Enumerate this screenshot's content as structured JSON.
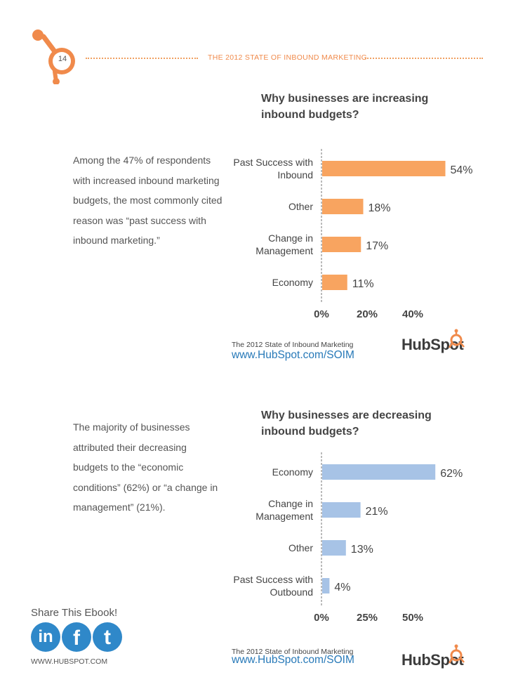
{
  "header": {
    "page_number": "14",
    "title": "THE 2012 STATE OF INBOUND MARKETING"
  },
  "section1": {
    "text": "Among the 47% of respondents with increased inbound marketing budgets, the most commonly cited reason was “past success with inbound marketing.”",
    "chart_title": "Why businesses are increasing inbound budgets?",
    "source_label": "The 2012 State of Inbound Marketing",
    "source_url": "www.HubSpot.com/SOIM",
    "brand": "HubSpot"
  },
  "section2": {
    "text": "The majority of businesses attributed their decreasing budgets to the “economic conditions” (62%) or “a change in management” (21%).",
    "chart_title": "Why businesses are decreasing inbound budgets?",
    "source_label": "The 2012 State of Inbound Marketing",
    "source_url": "www.HubSpot.com/SOIM",
    "brand": "HubSpot"
  },
  "footer": {
    "share_label": "Share This Ebook!",
    "linkedin_label": "in",
    "facebook_label": "f",
    "twitter_label": "t",
    "website": "WWW.HUBSPOT.COM"
  },
  "colors": {
    "accent": "#f08a4b",
    "bar_increase": "#f8a460",
    "bar_decrease": "#a7c3e6",
    "link": "#2779b8",
    "social": "#2f88c9"
  },
  "chart_data": [
    {
      "type": "bar",
      "orientation": "horizontal",
      "title": "Why businesses are increasing inbound budgets?",
      "categories": [
        [
          "Past Success with",
          "Inbound"
        ],
        [
          "Other"
        ],
        [
          "Change in",
          "Management"
        ],
        [
          "Economy"
        ]
      ],
      "values": [
        54,
        18,
        17,
        11
      ],
      "value_labels": [
        "54%",
        "18%",
        "17%",
        "11%"
      ],
      "xlim": [
        0,
        40
      ],
      "ticks": [
        0,
        20,
        40
      ],
      "tick_labels": [
        "0%",
        "20%",
        "40%"
      ],
      "color": "#f8a460"
    },
    {
      "type": "bar",
      "orientation": "horizontal",
      "title": "Why businesses are decreasing inbound budgets?",
      "categories": [
        [
          "Economy"
        ],
        [
          "Change in",
          "Management"
        ],
        [
          "Other"
        ],
        [
          "Past Success with",
          "Outbound"
        ]
      ],
      "values": [
        62,
        21,
        13,
        4
      ],
      "value_labels": [
        "62%",
        "21%",
        "13%",
        "4%"
      ],
      "xlim": [
        0,
        50
      ],
      "ticks": [
        0,
        25,
        50
      ],
      "tick_labels": [
        "0%",
        "25%",
        "50%"
      ],
      "color": "#a7c3e6"
    }
  ]
}
